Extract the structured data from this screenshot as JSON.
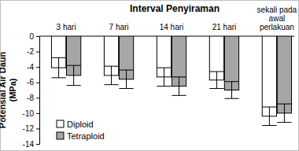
{
  "chart_data": {
    "type": "bar",
    "title": "Interval Penyiraman",
    "categories": [
      "3 hari",
      "7 hari",
      "14 hari",
      "21 hari",
      "sekali pada awal perlakuan"
    ],
    "y_label": "Potensial Air Daun (MPa)",
    "series": [
      {
        "name": "Diploid",
        "color": "#ffffff",
        "values": [
          -4.1,
          -5.1,
          -5.3,
          -5.7,
          -10.4
        ],
        "errors": [
          1.3,
          1.2,
          1.2,
          1.1,
          1.2
        ]
      },
      {
        "name": "Tetraploid",
        "color": "#a6a6a6",
        "values": [
          -5.1,
          -5.6,
          -6.5,
          -7.0,
          -10.0
        ],
        "errors": [
          1.3,
          1.2,
          1.2,
          1.1,
          1.2
        ]
      }
    ],
    "ylim": [
      -14,
      0
    ],
    "yticks": [
      -14,
      -12,
      -10,
      -8,
      -6,
      -4,
      -2,
      0
    ],
    "grid": false,
    "legend": "lower left"
  }
}
